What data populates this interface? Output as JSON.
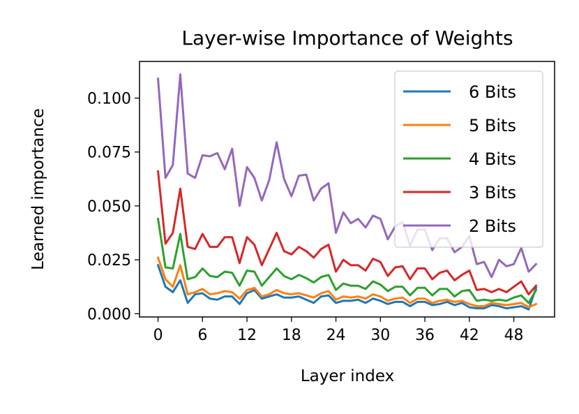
{
  "chart_data": {
    "type": "line",
    "title": "Layer-wise Importance of Weights",
    "xlabel": "Layer index",
    "ylabel": "Learned importance",
    "xlim": [
      -2.5,
      53.5
    ],
    "ylim": [
      -0.0015,
      0.117
    ],
    "xticks": [
      0,
      6,
      12,
      18,
      24,
      30,
      36,
      42,
      48
    ],
    "yticks": [
      0.0,
      0.025,
      0.05,
      0.075,
      0.1
    ],
    "ytick_labels": [
      "0.000",
      "0.025",
      "0.050",
      "0.075",
      "0.100"
    ],
    "legend_position": "upper right",
    "x": [
      0,
      1,
      2,
      3,
      4,
      5,
      6,
      7,
      8,
      9,
      10,
      11,
      12,
      13,
      14,
      15,
      16,
      17,
      18,
      19,
      20,
      21,
      22,
      23,
      24,
      25,
      26,
      27,
      28,
      29,
      30,
      31,
      32,
      33,
      34,
      35,
      36,
      37,
      38,
      39,
      40,
      41,
      42,
      43,
      44,
      45,
      46,
      47,
      48,
      49,
      50,
      51
    ],
    "series": [
      {
        "name": "6 Bits",
        "color": "#1f77b4",
        "values": [
          0.0225,
          0.0125,
          0.01,
          0.0155,
          0.005,
          0.009,
          0.0095,
          0.007,
          0.0065,
          0.008,
          0.008,
          0.0045,
          0.0095,
          0.011,
          0.007,
          0.008,
          0.009,
          0.0075,
          0.0075,
          0.008,
          0.0065,
          0.005,
          0.008,
          0.0085,
          0.005,
          0.006,
          0.006,
          0.0065,
          0.005,
          0.007,
          0.006,
          0.0045,
          0.0055,
          0.0055,
          0.0035,
          0.0055,
          0.0055,
          0.004,
          0.0045,
          0.0055,
          0.004,
          0.005,
          0.003,
          0.0025,
          0.0025,
          0.004,
          0.0035,
          0.0025,
          0.003,
          0.0035,
          0.002,
          0.012
        ]
      },
      {
        "name": "5 Bits",
        "color": "#ff7f0e",
        "values": [
          0.026,
          0.016,
          0.0125,
          0.0225,
          0.009,
          0.01,
          0.0115,
          0.009,
          0.0095,
          0.0105,
          0.01,
          0.007,
          0.011,
          0.012,
          0.008,
          0.009,
          0.011,
          0.0095,
          0.009,
          0.0095,
          0.0085,
          0.0075,
          0.0095,
          0.0105,
          0.0065,
          0.008,
          0.0075,
          0.008,
          0.007,
          0.009,
          0.008,
          0.006,
          0.007,
          0.0075,
          0.005,
          0.007,
          0.007,
          0.005,
          0.006,
          0.0065,
          0.0055,
          0.006,
          0.0045,
          0.0035,
          0.0035,
          0.005,
          0.0045,
          0.004,
          0.0045,
          0.005,
          0.003,
          0.0045
        ]
      },
      {
        "name": "4 Bits",
        "color": "#2ca02c",
        "values": [
          0.044,
          0.0215,
          0.021,
          0.037,
          0.016,
          0.017,
          0.021,
          0.0175,
          0.017,
          0.0195,
          0.019,
          0.013,
          0.02,
          0.0195,
          0.013,
          0.017,
          0.021,
          0.0175,
          0.016,
          0.018,
          0.0165,
          0.0145,
          0.017,
          0.018,
          0.011,
          0.014,
          0.013,
          0.013,
          0.0115,
          0.015,
          0.0135,
          0.0105,
          0.0125,
          0.0125,
          0.0085,
          0.012,
          0.012,
          0.0085,
          0.0115,
          0.0115,
          0.008,
          0.0105,
          0.011,
          0.006,
          0.0065,
          0.006,
          0.0065,
          0.006,
          0.0075,
          0.0085,
          0.005,
          0.011
        ]
      },
      {
        "name": "3 Bits",
        "color": "#d62728",
        "values": [
          0.066,
          0.0325,
          0.0375,
          0.058,
          0.031,
          0.03,
          0.037,
          0.031,
          0.031,
          0.0355,
          0.0355,
          0.0235,
          0.0355,
          0.032,
          0.0225,
          0.03,
          0.0375,
          0.029,
          0.0275,
          0.031,
          0.029,
          0.026,
          0.03,
          0.032,
          0.0195,
          0.025,
          0.0225,
          0.0225,
          0.02,
          0.0255,
          0.024,
          0.0175,
          0.0215,
          0.022,
          0.016,
          0.021,
          0.021,
          0.016,
          0.019,
          0.02,
          0.0155,
          0.018,
          0.02,
          0.011,
          0.0115,
          0.01,
          0.0115,
          0.01,
          0.0125,
          0.015,
          0.009,
          0.013
        ]
      },
      {
        "name": "2 Bits",
        "color": "#9467bd",
        "values": [
          0.109,
          0.063,
          0.069,
          0.111,
          0.065,
          0.063,
          0.0735,
          0.073,
          0.0745,
          0.067,
          0.0765,
          0.05,
          0.068,
          0.063,
          0.0525,
          0.062,
          0.0795,
          0.0625,
          0.0545,
          0.064,
          0.0645,
          0.0525,
          0.058,
          0.0605,
          0.0375,
          0.047,
          0.042,
          0.044,
          0.04,
          0.0455,
          0.044,
          0.0345,
          0.0405,
          0.0425,
          0.0315,
          0.039,
          0.039,
          0.0295,
          0.035,
          0.035,
          0.0285,
          0.031,
          0.036,
          0.023,
          0.024,
          0.017,
          0.025,
          0.022,
          0.023,
          0.0305,
          0.0195,
          0.023
        ]
      }
    ]
  }
}
